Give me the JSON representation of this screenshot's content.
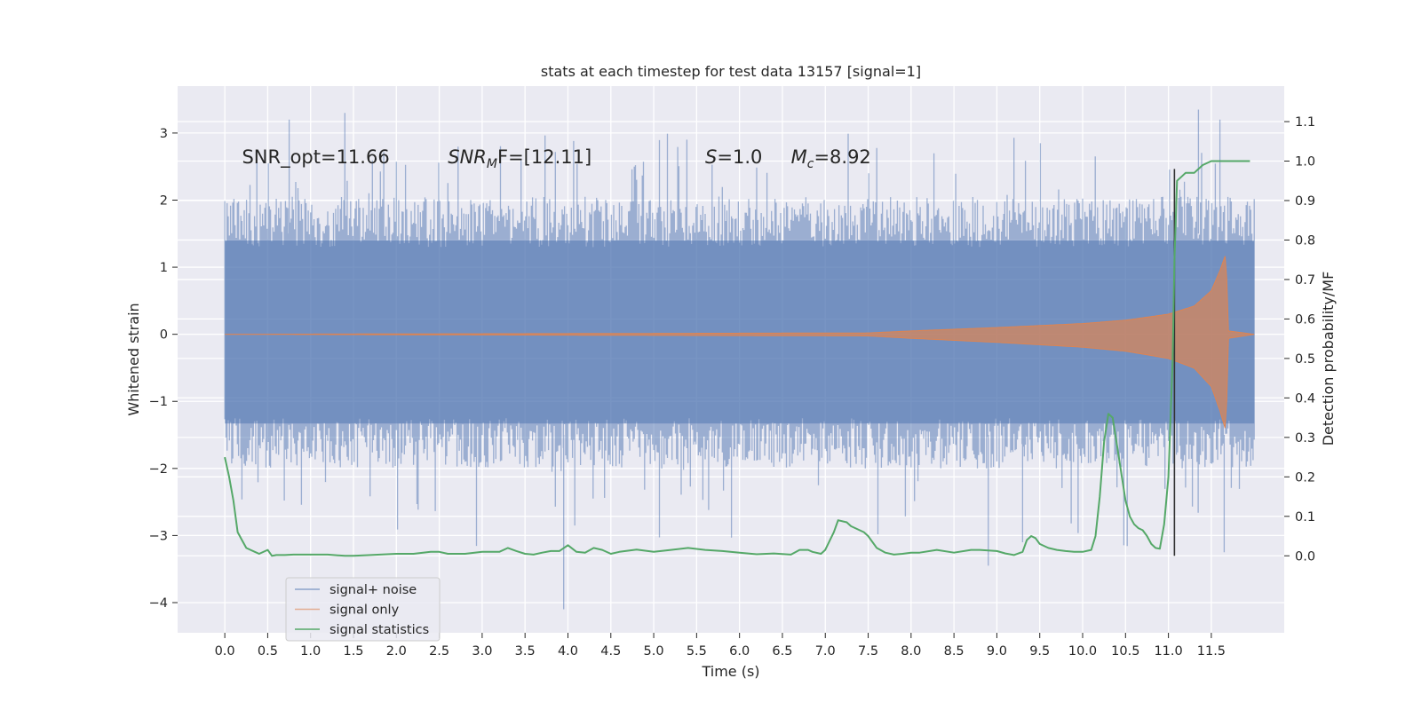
{
  "chart_data": {
    "type": "line",
    "title": "stats at each timestep for test data 13157 [signal=1]",
    "xlabel": "Time (s)",
    "ylabel": "Whitened strain",
    "y2label": "Detection probability/MF",
    "xlim": [
      -0.55,
      12.35
    ],
    "ylim": [
      -4.45,
      3.7
    ],
    "y2lim": [
      -0.195,
      1.19
    ],
    "x_ticks": [
      0.0,
      0.5,
      1.0,
      1.5,
      2.0,
      2.5,
      3.0,
      3.5,
      4.0,
      4.5,
      5.0,
      5.5,
      6.0,
      6.5,
      7.0,
      7.5,
      8.0,
      8.5,
      9.0,
      9.5,
      10.0,
      10.5,
      11.0,
      11.5
    ],
    "x_tick_labels": [
      "0.0",
      "0.5",
      "1.0",
      "1.5",
      "2.0",
      "2.5",
      "3.0",
      "3.5",
      "4.0",
      "4.5",
      "5.0",
      "5.5",
      "6.0",
      "6.5",
      "7.0",
      "7.5",
      "8.0",
      "8.5",
      "9.0",
      "9.5",
      "10.0",
      "10.5",
      "11.0",
      "11.5"
    ],
    "y_ticks": [
      -4,
      -3,
      -2,
      -1,
      0,
      1,
      2,
      3
    ],
    "y_tick_labels": [
      "−4",
      "−3",
      "−2",
      "−1",
      "0",
      "1",
      "2",
      "3"
    ],
    "y2_ticks": [
      0.0,
      0.1,
      0.2,
      0.3,
      0.4,
      0.5,
      0.6,
      0.7,
      0.8,
      0.9,
      1.0,
      1.1
    ],
    "y2_tick_labels": [
      "0.0",
      "0.1",
      "0.2",
      "0.3",
      "0.4",
      "0.5",
      "0.6",
      "0.7",
      "0.8",
      "0.9",
      "1.0",
      "1.1"
    ],
    "grid": true,
    "legend_position": "lower-left",
    "annotations": [
      {
        "text": "SNR_opt=11.66",
        "x": 0.2,
        "y": 2.55
      },
      {
        "text": "𝑆𝑁𝑅ₘ𝐹=[12.11]",
        "x": 2.6,
        "y": 2.55
      },
      {
        "text": "𝑆=1.0",
        "x": 5.6,
        "y": 2.55
      },
      {
        "text": "𝑀ₓ=8.92",
        "x": 6.6,
        "y": 2.55
      }
    ],
    "annotation_texts": [
      "SNR_opt=11.66",
      "SNR",
      "M",
      "F=[12.11]",
      "S",
      "=1.0",
      "M",
      "c",
      "=8.92"
    ],
    "series": [
      {
        "name": "signal+ noise",
        "axis": "left",
        "color": "#4c72b0",
        "opacity": 0.5,
        "x_range": [
          0.0,
          12.0
        ],
        "envelope_lower": -1.9,
        "envelope_upper": 2.0,
        "spike_upper_max": 3.35,
        "spike_lower_min": -4.1
      },
      {
        "name": "signal only",
        "axis": "left",
        "color": "#dd8452",
        "opacity": 0.7,
        "envelope": [
          {
            "x": 0.0,
            "amp": 0.0
          },
          {
            "x": 7.5,
            "amp": 0.02
          },
          {
            "x": 8.0,
            "amp": 0.05
          },
          {
            "x": 9.0,
            "amp": 0.1
          },
          {
            "x": 10.0,
            "amp": 0.16
          },
          {
            "x": 10.5,
            "amp": 0.21
          },
          {
            "x": 11.0,
            "amp": 0.3
          },
          {
            "x": 11.3,
            "amp": 0.42
          },
          {
            "x": 11.5,
            "amp": 0.65
          },
          {
            "x": 11.6,
            "amp": 0.95
          },
          {
            "x": 11.67,
            "amp": 1.2
          },
          {
            "x": 11.7,
            "amp": 0.05
          },
          {
            "x": 12.0,
            "amp": 0.0
          }
        ]
      },
      {
        "name": "signal statistics",
        "axis": "right",
        "color": "#55a868",
        "opacity": 1,
        "points": [
          [
            0.0,
            0.25
          ],
          [
            0.05,
            0.2
          ],
          [
            0.1,
            0.14
          ],
          [
            0.15,
            0.06
          ],
          [
            0.2,
            0.04
          ],
          [
            0.25,
            0.02
          ],
          [
            0.3,
            0.015
          ],
          [
            0.35,
            0.01
          ],
          [
            0.4,
            0.005
          ],
          [
            0.5,
            0.015
          ],
          [
            0.55,
            0.0
          ],
          [
            0.6,
            0.002
          ],
          [
            0.7,
            0.002
          ],
          [
            0.8,
            0.003
          ],
          [
            1.0,
            0.003
          ],
          [
            1.2,
            0.003
          ],
          [
            1.4,
            0.0
          ],
          [
            1.5,
            0.0
          ],
          [
            1.7,
            0.002
          ],
          [
            2.0,
            0.005
          ],
          [
            2.2,
            0.005
          ],
          [
            2.4,
            0.01
          ],
          [
            2.5,
            0.01
          ],
          [
            2.6,
            0.005
          ],
          [
            2.8,
            0.005
          ],
          [
            3.0,
            0.01
          ],
          [
            3.2,
            0.01
          ],
          [
            3.3,
            0.02
          ],
          [
            3.4,
            0.012
          ],
          [
            3.5,
            0.005
          ],
          [
            3.6,
            0.003
          ],
          [
            3.7,
            0.008
          ],
          [
            3.8,
            0.012
          ],
          [
            3.9,
            0.012
          ],
          [
            4.0,
            0.027
          ],
          [
            4.1,
            0.01
          ],
          [
            4.2,
            0.008
          ],
          [
            4.3,
            0.02
          ],
          [
            4.4,
            0.015
          ],
          [
            4.5,
            0.005
          ],
          [
            4.6,
            0.01
          ],
          [
            4.8,
            0.016
          ],
          [
            5.0,
            0.01
          ],
          [
            5.2,
            0.015
          ],
          [
            5.4,
            0.02
          ],
          [
            5.6,
            0.015
          ],
          [
            5.8,
            0.012
          ],
          [
            6.0,
            0.008
          ],
          [
            6.2,
            0.004
          ],
          [
            6.4,
            0.006
          ],
          [
            6.6,
            0.003
          ],
          [
            6.7,
            0.015
          ],
          [
            6.8,
            0.015
          ],
          [
            6.85,
            0.01
          ],
          [
            6.95,
            0.005
          ],
          [
            7.0,
            0.015
          ],
          [
            7.1,
            0.06
          ],
          [
            7.15,
            0.09
          ],
          [
            7.25,
            0.085
          ],
          [
            7.3,
            0.075
          ],
          [
            7.45,
            0.06
          ],
          [
            7.5,
            0.05
          ],
          [
            7.6,
            0.02
          ],
          [
            7.7,
            0.008
          ],
          [
            7.8,
            0.003
          ],
          [
            7.9,
            0.005
          ],
          [
            8.0,
            0.008
          ],
          [
            8.1,
            0.008
          ],
          [
            8.3,
            0.015
          ],
          [
            8.5,
            0.008
          ],
          [
            8.7,
            0.015
          ],
          [
            8.8,
            0.015
          ],
          [
            9.0,
            0.012
          ],
          [
            9.1,
            0.006
          ],
          [
            9.2,
            0.002
          ],
          [
            9.3,
            0.01
          ],
          [
            9.35,
            0.04
          ],
          [
            9.4,
            0.05
          ],
          [
            9.45,
            0.045
          ],
          [
            9.5,
            0.03
          ],
          [
            9.6,
            0.02
          ],
          [
            9.7,
            0.015
          ],
          [
            9.8,
            0.012
          ],
          [
            9.9,
            0.01
          ],
          [
            10.0,
            0.01
          ],
          [
            10.1,
            0.015
          ],
          [
            10.15,
            0.05
          ],
          [
            10.2,
            0.15
          ],
          [
            10.25,
            0.29
          ],
          [
            10.3,
            0.36
          ],
          [
            10.35,
            0.35
          ],
          [
            10.4,
            0.28
          ],
          [
            10.45,
            0.21
          ],
          [
            10.5,
            0.14
          ],
          [
            10.55,
            0.1
          ],
          [
            10.6,
            0.08
          ],
          [
            10.65,
            0.07
          ],
          [
            10.7,
            0.065
          ],
          [
            10.75,
            0.05
          ],
          [
            10.8,
            0.03
          ],
          [
            10.85,
            0.02
          ],
          [
            10.9,
            0.018
          ],
          [
            10.95,
            0.08
          ],
          [
            11.0,
            0.2
          ],
          [
            11.05,
            0.5
          ],
          [
            11.07,
            0.75
          ],
          [
            11.1,
            0.95
          ],
          [
            11.15,
            0.96
          ],
          [
            11.2,
            0.97
          ],
          [
            11.3,
            0.97
          ],
          [
            11.35,
            0.98
          ],
          [
            11.4,
            0.99
          ],
          [
            11.5,
            1.0
          ],
          [
            11.6,
            1.0
          ],
          [
            11.7,
            1.0
          ],
          [
            11.8,
            1.0
          ],
          [
            11.9,
            1.0
          ],
          [
            11.95,
            1.0
          ]
        ]
      }
    ],
    "vline": {
      "x": 11.07,
      "color": "#333333",
      "y2_from": 0.0,
      "y2_to": 0.98
    }
  }
}
